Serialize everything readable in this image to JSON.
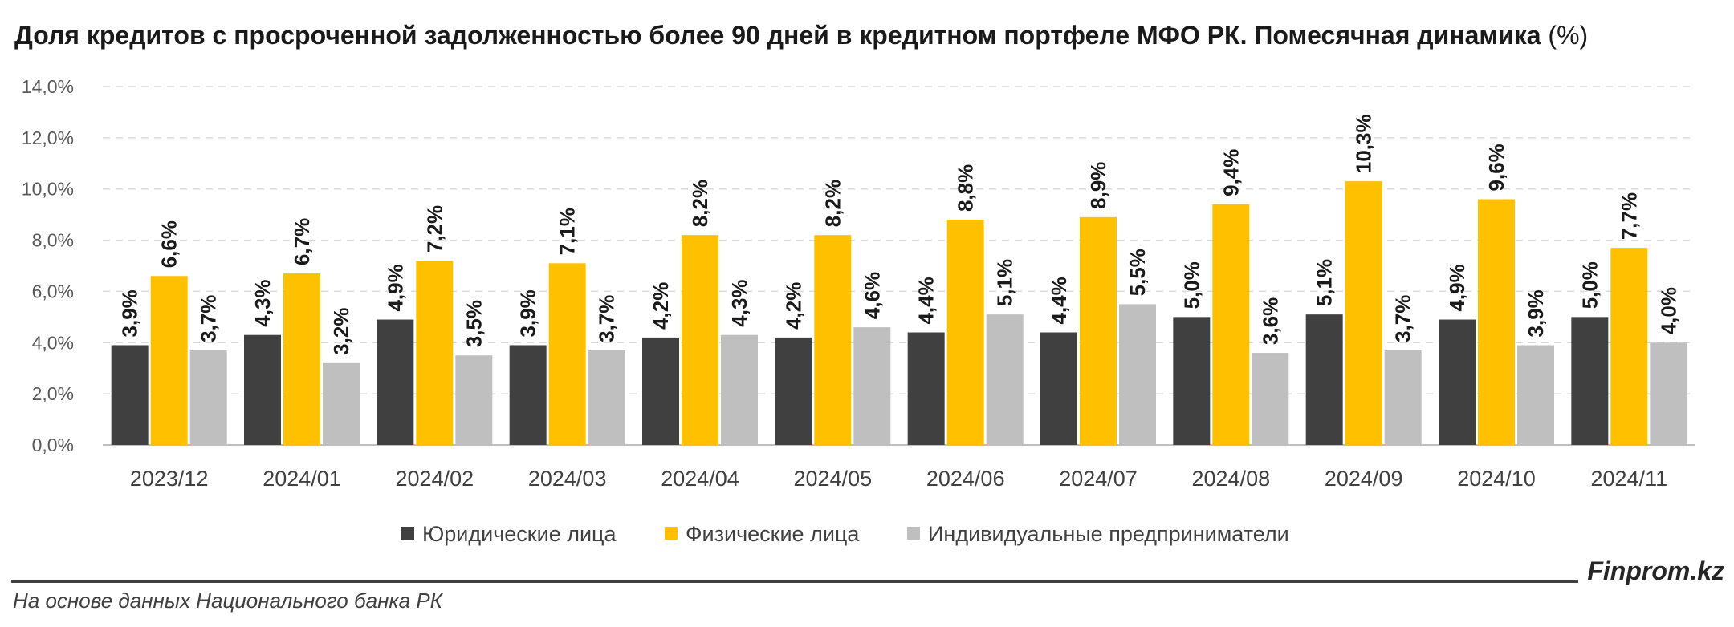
{
  "title": "Доля кредитов с просроченной задолженностью более 90 дней в кредитном портфеле МФО РК. Помесячная динамика",
  "title_unit": "(%)",
  "brand": "Finprom.kz",
  "source": "На основе данных Национального банка РК",
  "colors": {
    "legal": "#404040",
    "individuals": "#ffc000",
    "entrepreneurs": "#bfbfbf"
  },
  "chart_data": {
    "type": "bar",
    "categories": [
      "2023/12",
      "2024/01",
      "2024/02",
      "2024/03",
      "2024/04",
      "2024/05",
      "2024/06",
      "2024/07",
      "2024/08",
      "2024/09",
      "2024/10",
      "2024/11"
    ],
    "series": [
      {
        "name": "Юридические лица",
        "color": "#404040",
        "values": [
          3.9,
          4.3,
          4.9,
          3.9,
          4.2,
          4.2,
          4.4,
          4.4,
          5.0,
          5.1,
          4.9,
          5.0
        ],
        "labels": [
          "3,9%",
          "4,3%",
          "4,9%",
          "3,9%",
          "4,2%",
          "4,2%",
          "4,4%",
          "4,4%",
          "5,0%",
          "5,1%",
          "4,9%",
          "5,0%"
        ]
      },
      {
        "name": "Физические лица",
        "color": "#ffc000",
        "values": [
          6.6,
          6.7,
          7.2,
          7.1,
          8.2,
          8.2,
          8.8,
          8.9,
          9.4,
          10.3,
          9.6,
          7.7
        ],
        "labels": [
          "6,6%",
          "6,7%",
          "7,2%",
          "7,1%",
          "8,2%",
          "8,2%",
          "8,8%",
          "8,9%",
          "9,4%",
          "10,3%",
          "9,6%",
          "7,7%"
        ]
      },
      {
        "name": "Индивидуальные предприниматели",
        "color": "#bfbfbf",
        "values": [
          3.7,
          3.2,
          3.5,
          3.7,
          4.3,
          4.6,
          5.1,
          5.5,
          3.6,
          3.7,
          3.9,
          4.0
        ],
        "labels": [
          "3,7%",
          "3,2%",
          "3,5%",
          "3,7%",
          "4,3%",
          "4,6%",
          "5,1%",
          "5,5%",
          "3,6%",
          "3,7%",
          "3,9%",
          "4,0%"
        ]
      }
    ],
    "yticks": [
      "0,0%",
      "2,0%",
      "4,0%",
      "6,0%",
      "8,0%",
      "10,0%",
      "12,0%",
      "14,0%"
    ],
    "ylim": [
      0,
      14
    ],
    "ystep": 2,
    "grid": true,
    "legend_position": "bottom"
  }
}
